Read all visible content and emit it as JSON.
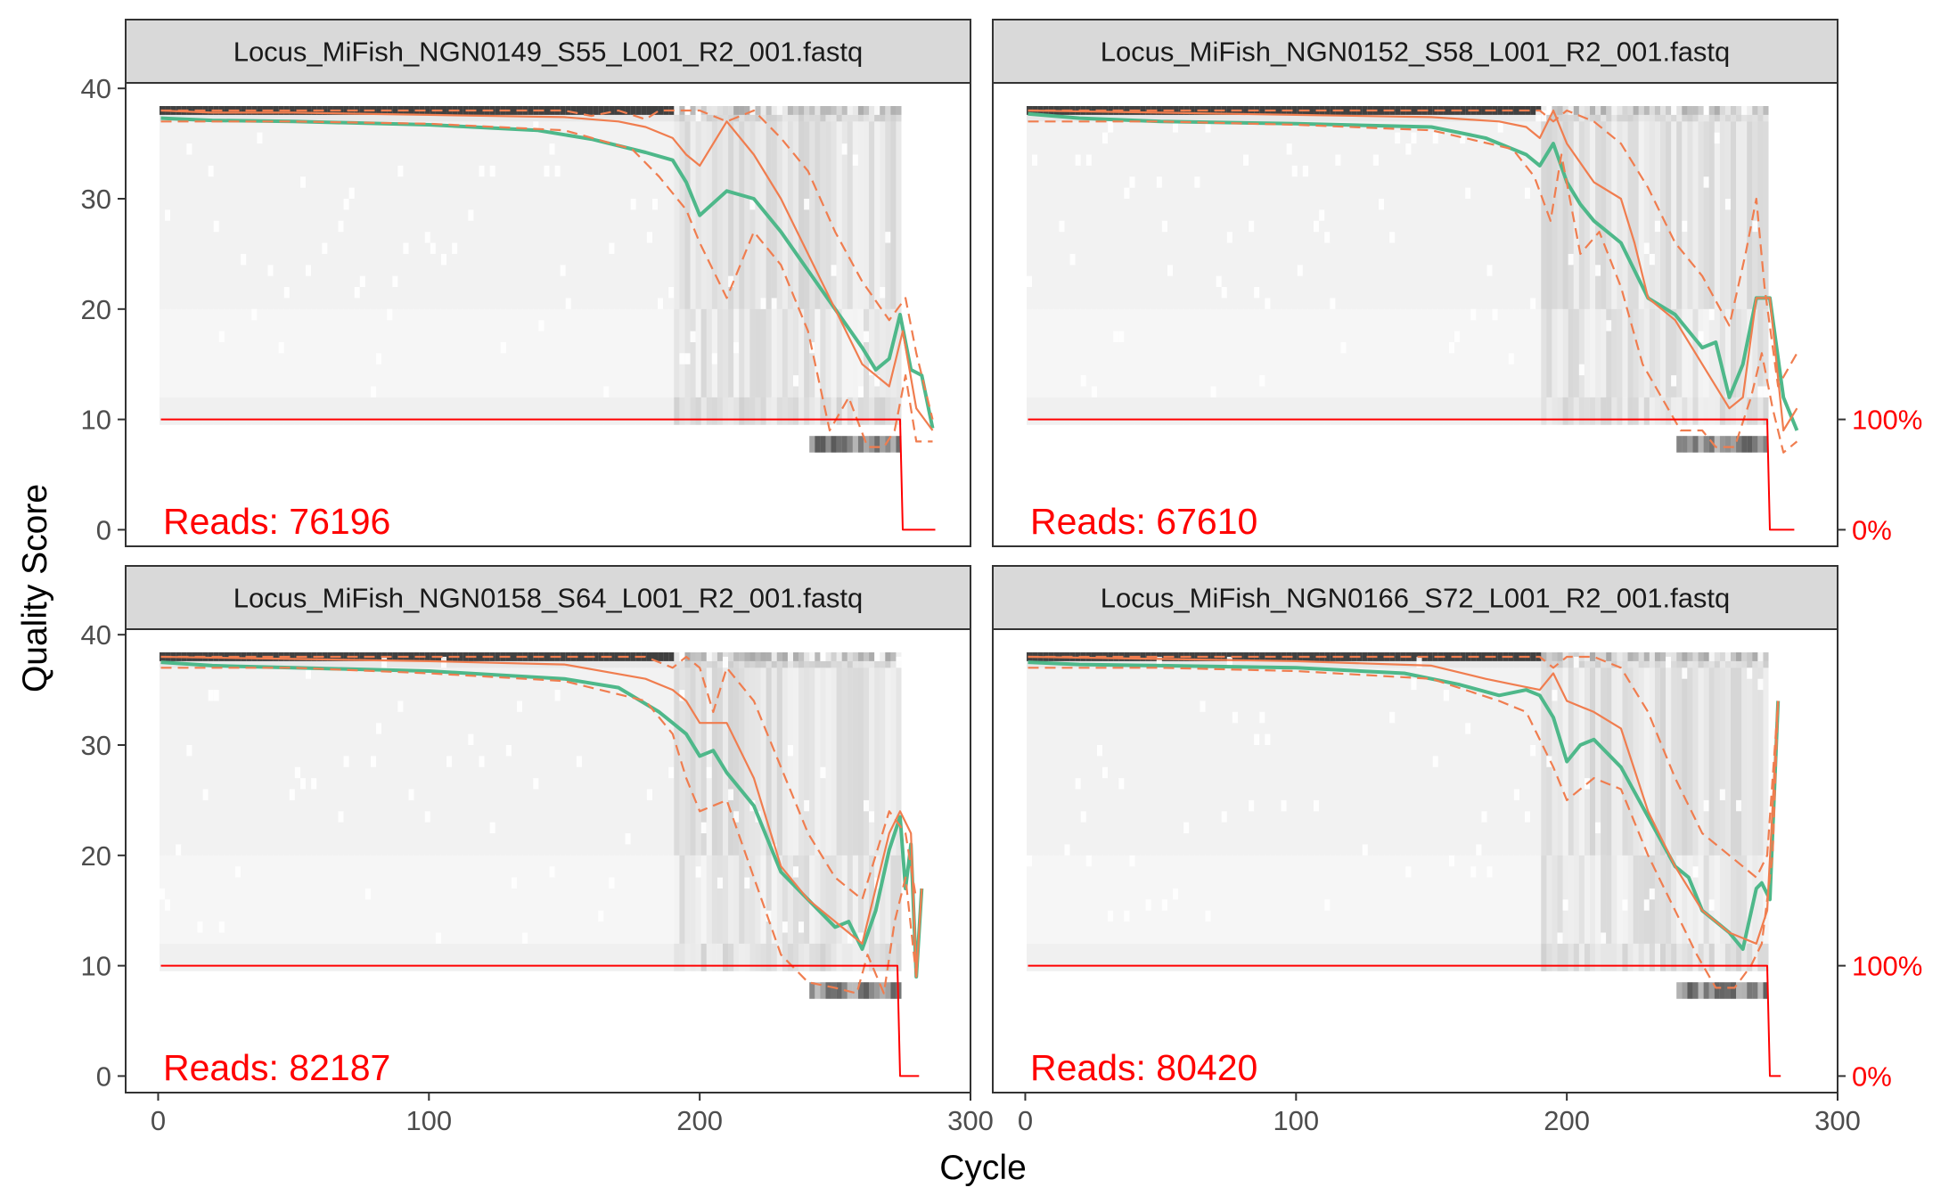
{
  "figure": {
    "xlabel": "Cycle",
    "ylabel": "Quality Score",
    "reads_prefix": "Reads:",
    "x_ticks": [
      "0",
      "100",
      "200",
      "300"
    ],
    "y_ticks": [
      "0",
      "10",
      "20",
      "30",
      "40"
    ],
    "right_ticks": [
      "0%",
      "100%"
    ]
  },
  "colors": {
    "mean_line": "#4eb88a",
    "quantile_lines": "#f07d4f",
    "read_fraction_line": "#ff0000",
    "reads_label": "#ff0000",
    "strip_fill": "#d9d9d9",
    "panel_border": "#333333"
  },
  "chart_data": [
    {
      "type": "line",
      "title": "Locus_MiFish_NGN0149_S55_L001_R2_001.fastq",
      "reads": "76196",
      "xlim": [
        -12,
        300
      ],
      "ylim": [
        -1.5,
        40.5
      ],
      "xlabel": "Cycle",
      "ylabel": "Quality Score",
      "series": [
        {
          "name": "Mean",
          "x": [
            1,
            20,
            50,
            100,
            140,
            160,
            180,
            190,
            195,
            200,
            210,
            220,
            230,
            240,
            250,
            260,
            265,
            270,
            274,
            278,
            282,
            286
          ],
          "y": [
            37.3,
            37.1,
            37.0,
            36.7,
            36.2,
            35.4,
            34.2,
            33.5,
            31.5,
            28.5,
            30.7,
            30.0,
            27.0,
            23.5,
            20.0,
            16.5,
            14.5,
            15.5,
            19.5,
            14.5,
            14.0,
            9.2
          ]
        },
        {
          "name": "Median",
          "x": [
            1,
            20,
            50,
            100,
            150,
            170,
            180,
            190,
            195,
            200,
            210,
            220,
            230,
            240,
            250,
            260,
            270,
            275,
            280,
            286
          ],
          "y": [
            38.0,
            37.8,
            37.8,
            37.6,
            37.4,
            37.0,
            36.5,
            35.5,
            34.0,
            33.0,
            37.0,
            34.0,
            30.0,
            25.0,
            20.0,
            15.0,
            13.0,
            18.0,
            11.0,
            9.0
          ]
        },
        {
          "name": "Quantile 25",
          "x": [
            1,
            50,
            100,
            150,
            175,
            185,
            195,
            200,
            210,
            220,
            230,
            240,
            248,
            255,
            262,
            268,
            272,
            276,
            280,
            286
          ],
          "y": [
            37.0,
            37.0,
            36.8,
            36.2,
            34.5,
            32.0,
            29.0,
            26.0,
            21.0,
            27.0,
            24.0,
            18.0,
            9.0,
            12.0,
            7.5,
            7.5,
            9.0,
            14.0,
            8.0,
            8.0
          ]
        },
        {
          "name": "Quantile 75",
          "x": [
            1,
            50,
            100,
            150,
            160,
            170,
            180,
            185,
            190,
            200,
            205,
            210,
            220,
            230,
            240,
            250,
            260,
            270,
            276,
            280,
            286
          ],
          "y": [
            38.0,
            38.0,
            38.0,
            38.0,
            37.5,
            38.0,
            37.2,
            38.0,
            38.0,
            38.0,
            37.5,
            37.0,
            38.0,
            35.5,
            32.5,
            27.0,
            22.5,
            19.0,
            21.0,
            16.0,
            10.0
          ]
        },
        {
          "name": "Read fraction",
          "x": [
            1,
            270,
            274,
            275,
            276,
            287
          ],
          "y": [
            10,
            10,
            10,
            0,
            0,
            0
          ]
        }
      ]
    },
    {
      "type": "line",
      "title": "Locus_MiFish_NGN0152_S58_L001_R2_001.fastq",
      "reads": "67610",
      "xlim": [
        -12,
        300
      ],
      "ylim": [
        -1.5,
        40.5
      ],
      "xlabel": "Cycle",
      "ylabel": "Quality Score",
      "series": [
        {
          "name": "Mean",
          "x": [
            1,
            20,
            50,
            100,
            150,
            170,
            185,
            190,
            195,
            200,
            205,
            210,
            220,
            230,
            240,
            250,
            255,
            260,
            265,
            270,
            275,
            280,
            285
          ],
          "y": [
            37.7,
            37.3,
            37.0,
            36.8,
            36.5,
            35.5,
            34.0,
            33.0,
            35.0,
            31.5,
            29.5,
            28.0,
            26.0,
            21.0,
            19.5,
            16.5,
            17.0,
            12.0,
            15.0,
            21.0,
            21.0,
            12.0,
            9.0
          ]
        },
        {
          "name": "Median",
          "x": [
            1,
            50,
            100,
            150,
            175,
            185,
            190,
            195,
            200,
            210,
            220,
            225,
            230,
            240,
            250,
            260,
            265,
            270,
            275,
            280,
            285
          ],
          "y": [
            38.0,
            37.8,
            37.6,
            37.4,
            37.0,
            36.5,
            35.5,
            38.0,
            35.0,
            31.5,
            30.0,
            26.0,
            21.0,
            19.0,
            15.0,
            11.0,
            12.0,
            21.0,
            21.0,
            9.0,
            11.0
          ]
        },
        {
          "name": "Quantile 25",
          "x": [
            1,
            50,
            100,
            150,
            180,
            188,
            194,
            198,
            205,
            212,
            220,
            228,
            235,
            242,
            250,
            255,
            262,
            268,
            272,
            276,
            280,
            285
          ],
          "y": [
            37.0,
            37.0,
            36.7,
            36.2,
            34.5,
            32.0,
            28.0,
            34.0,
            25.0,
            27.0,
            22.0,
            15.0,
            12.0,
            9.0,
            9.0,
            7.5,
            7.5,
            12.0,
            16.0,
            11.0,
            7.0,
            8.0
          ]
        },
        {
          "name": "Quantile 75",
          "x": [
            1,
            50,
            100,
            150,
            180,
            190,
            195,
            200,
            210,
            220,
            230,
            240,
            250,
            260,
            266,
            270,
            273,
            278,
            285
          ],
          "y": [
            38.0,
            38.0,
            38.0,
            38.0,
            38.0,
            38.0,
            37.0,
            38.0,
            37.0,
            35.0,
            31.0,
            26.0,
            23.0,
            18.5,
            25.0,
            30.0,
            22.0,
            13.0,
            16.0
          ]
        },
        {
          "name": "Read fraction",
          "x": [
            1,
            270,
            274,
            275,
            276,
            284
          ],
          "y": [
            10,
            10,
            10,
            0,
            0,
            0
          ]
        }
      ]
    },
    {
      "type": "line",
      "title": "Locus_MiFish_NGN0158_S64_L001_R2_001.fastq",
      "reads": "82187",
      "xlim": [
        -12,
        300
      ],
      "ylim": [
        -1.5,
        40.5
      ],
      "xlabel": "Cycle",
      "ylabel": "Quality Score",
      "series": [
        {
          "name": "Mean",
          "x": [
            1,
            20,
            50,
            100,
            150,
            170,
            185,
            190,
            195,
            200,
            205,
            210,
            220,
            230,
            240,
            250,
            255,
            260,
            265,
            270,
            274,
            276,
            278,
            280,
            282
          ],
          "y": [
            37.5,
            37.2,
            37.0,
            36.7,
            36.0,
            35.2,
            33.0,
            32.0,
            31.0,
            29.0,
            29.5,
            27.5,
            24.5,
            18.5,
            16.0,
            13.5,
            14.0,
            11.5,
            15.0,
            20.5,
            23.5,
            17.0,
            21.0,
            9.0,
            17.0
          ]
        },
        {
          "name": "Median",
          "x": [
            1,
            50,
            100,
            150,
            180,
            190,
            195,
            200,
            210,
            220,
            230,
            240,
            250,
            260,
            270,
            274,
            278,
            280,
            282
          ],
          "y": [
            38.0,
            37.8,
            37.6,
            37.3,
            36.0,
            35.0,
            34.0,
            32.0,
            32.0,
            27.0,
            19.0,
            16.0,
            14.0,
            12.0,
            22.0,
            24.0,
            22.0,
            9.0,
            17.0
          ]
        },
        {
          "name": "Quantile 25",
          "x": [
            1,
            50,
            100,
            150,
            180,
            190,
            195,
            200,
            210,
            220,
            230,
            240,
            250,
            258,
            262,
            268,
            272,
            276,
            280
          ],
          "y": [
            37.0,
            37.0,
            36.5,
            35.8,
            34.0,
            31.0,
            27.0,
            24.0,
            25.0,
            18.0,
            11.0,
            8.5,
            8.0,
            7.5,
            11.0,
            7.5,
            14.0,
            18.0,
            9.0
          ]
        },
        {
          "name": "Quantile 75",
          "x": [
            1,
            50,
            100,
            150,
            180,
            190,
            195,
            200,
            205,
            210,
            220,
            230,
            240,
            250,
            260,
            270,
            276,
            280
          ],
          "y": [
            38.0,
            38.0,
            38.0,
            38.0,
            38.0,
            37.0,
            38.0,
            37.0,
            33.0,
            37.0,
            34.0,
            28.0,
            22.0,
            18.0,
            16.0,
            24.0,
            22.0,
            16.0
          ]
        },
        {
          "name": "Read fraction",
          "x": [
            1,
            270,
            273,
            274,
            275,
            281
          ],
          "y": [
            10,
            10,
            10,
            0,
            0,
            0
          ]
        }
      ]
    },
    {
      "type": "line",
      "title": "Locus_MiFish_NGN0166_S72_L001_R2_001.fastq",
      "reads": "80420",
      "xlim": [
        -12,
        300
      ],
      "ylim": [
        -1.5,
        40.5
      ],
      "xlabel": "Cycle",
      "ylabel": "Quality Score",
      "series": [
        {
          "name": "Mean",
          "x": [
            1,
            20,
            50,
            100,
            140,
            160,
            175,
            185,
            190,
            195,
            200,
            205,
            210,
            220,
            230,
            240,
            245,
            250,
            255,
            260,
            265,
            270,
            272,
            275,
            278
          ],
          "y": [
            37.5,
            37.3,
            37.2,
            37.0,
            36.5,
            35.5,
            34.5,
            35.0,
            34.5,
            32.5,
            28.5,
            30.0,
            30.5,
            28.0,
            23.5,
            19.0,
            18.0,
            15.0,
            14.0,
            13.0,
            11.5,
            17.0,
            17.5,
            16.0,
            34.0
          ]
        },
        {
          "name": "Median",
          "x": [
            1,
            50,
            100,
            150,
            170,
            180,
            190,
            195,
            200,
            210,
            220,
            230,
            240,
            250,
            260,
            270,
            274,
            278
          ],
          "y": [
            38.0,
            37.8,
            37.6,
            37.2,
            36.0,
            35.5,
            35.0,
            36.5,
            34.0,
            33.0,
            31.5,
            24.0,
            19.0,
            15.0,
            13.0,
            12.0,
            15.0,
            34.0
          ]
        },
        {
          "name": "Quantile 25",
          "x": [
            1,
            50,
            100,
            150,
            175,
            185,
            195,
            200,
            205,
            210,
            220,
            230,
            240,
            248,
            255,
            262,
            268,
            272,
            276,
            278
          ],
          "y": [
            37.0,
            37.0,
            36.7,
            36.0,
            34.0,
            33.0,
            28.0,
            25.0,
            26.0,
            27.0,
            26.0,
            20.0,
            15.0,
            11.0,
            8.0,
            8.0,
            10.0,
            12.0,
            20.0,
            34.0
          ]
        },
        {
          "name": "Quantile 75",
          "x": [
            1,
            50,
            100,
            150,
            180,
            190,
            195,
            200,
            210,
            220,
            230,
            240,
            250,
            260,
            270,
            274,
            278
          ],
          "y": [
            38.0,
            38.0,
            38.0,
            38.0,
            38.0,
            38.0,
            37.0,
            38.0,
            38.0,
            37.0,
            33.0,
            27.0,
            22.0,
            20.0,
            18.0,
            20.0,
            34.0
          ]
        },
        {
          "name": "Read fraction",
          "x": [
            1,
            270,
            274,
            275,
            276,
            279
          ],
          "y": [
            10,
            10,
            10,
            0,
            0,
            0
          ]
        }
      ]
    }
  ]
}
